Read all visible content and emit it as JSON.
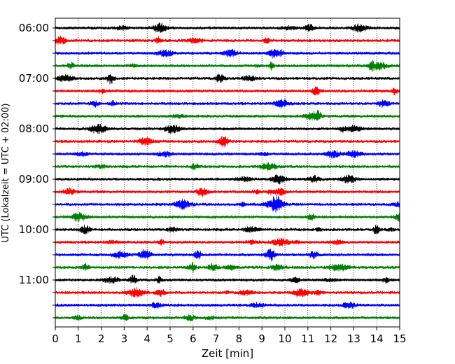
{
  "chart_data": {
    "type": "line",
    "subtype": "helicorder",
    "xlabel": "Zeit  [min]",
    "ylabel": "UTC (Lokalzeit = UTC + 02:00)",
    "xlim": [
      0,
      15
    ],
    "x_ticks": [
      "0",
      "1",
      "2",
      "3",
      "4",
      "5",
      "6",
      "7",
      "8",
      "9",
      "10",
      "11",
      "12",
      "13",
      "14",
      "15"
    ],
    "y_tick_labels": [
      "06:00",
      "07:00",
      "08:00",
      "09:00",
      "10:00",
      "11:00"
    ],
    "grid": "vertical dotted",
    "line_interval_minutes": 15,
    "start_time": "06:00",
    "rows": 24,
    "trace_colors": [
      "#000000",
      "#ff0000",
      "#0000ff",
      "#008000"
    ]
  }
}
